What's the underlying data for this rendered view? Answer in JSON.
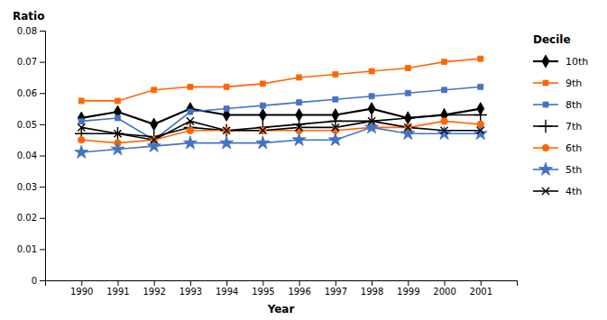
{
  "chart_data": {
    "type": "line",
    "xlabel": "Year",
    "ylabel": "Ratio",
    "legend_title": "Decile",
    "legend": "right",
    "grid": false,
    "x": [
      1990,
      1991,
      1992,
      1993,
      1994,
      1995,
      1996,
      1997,
      1998,
      1999,
      2000,
      2001
    ],
    "xlim": [
      1989,
      2002
    ],
    "xticks": [
      1990,
      1991,
      1992,
      1993,
      1994,
      1995,
      1996,
      1997,
      1998,
      1999,
      2000,
      2001
    ],
    "ylim": [
      0,
      0.08
    ],
    "yticks": [
      0,
      0.01,
      0.02,
      0.03,
      0.04,
      0.05,
      0.06,
      0.07,
      0.08
    ],
    "series": [
      {
        "name": "10th",
        "color": "#000000",
        "marker": "diamond",
        "values": [
          0.052,
          0.054,
          0.05,
          0.055,
          0.053,
          0.053,
          0.053,
          0.053,
          0.055,
          0.052,
          0.053,
          0.055
        ]
      },
      {
        "name": "9th",
        "color": "#FF6600",
        "marker": "square",
        "values": [
          0.0575,
          0.0575,
          0.061,
          0.062,
          0.062,
          0.063,
          0.065,
          0.066,
          0.067,
          0.068,
          0.07,
          0.071
        ]
      },
      {
        "name": "8th",
        "color": "#4472C4",
        "marker": "square",
        "values": [
          0.051,
          0.052,
          0.045,
          0.054,
          0.055,
          0.056,
          0.057,
          0.058,
          0.059,
          0.06,
          0.061,
          0.062
        ]
      },
      {
        "name": "7th",
        "color": "#000000",
        "marker": "plus",
        "values": [
          0.047,
          0.047,
          0.046,
          0.049,
          0.048,
          0.049,
          0.05,
          0.051,
          0.051,
          0.052,
          0.053,
          0.053
        ]
      },
      {
        "name": "6th",
        "color": "#FF6600",
        "marker": "circle",
        "values": [
          0.045,
          0.044,
          0.045,
          0.048,
          0.048,
          0.048,
          0.048,
          0.048,
          0.049,
          0.049,
          0.051,
          0.05
        ]
      },
      {
        "name": "5th",
        "color": "#4472C4",
        "marker": "star",
        "values": [
          0.041,
          0.042,
          0.043,
          0.044,
          0.044,
          0.044,
          0.045,
          0.045,
          0.049,
          0.047,
          0.047,
          0.047
        ]
      },
      {
        "name": "4th",
        "color": "#000000",
        "marker": "x",
        "values": [
          0.049,
          0.047,
          0.045,
          0.051,
          0.048,
          0.048,
          0.049,
          0.049,
          0.051,
          0.049,
          0.048,
          0.048
        ]
      }
    ]
  }
}
